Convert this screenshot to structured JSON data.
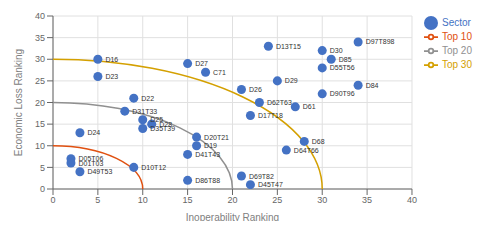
{
  "chart_data": {
    "type": "scatter",
    "xlabel": "Inoperability Ranking",
    "ylabel": "Economic Loss Ranking",
    "xlim": [
      0,
      40
    ],
    "ylim": [
      0,
      40
    ],
    "xticks": [
      0,
      5,
      10,
      15,
      20,
      25,
      30,
      35,
      40
    ],
    "yticks": [
      0,
      5,
      10,
      15,
      20,
      25,
      30,
      35,
      40
    ],
    "grid": true,
    "legend": "right",
    "series": [
      {
        "name": "Top 10",
        "type": "arc",
        "color": "#e05010",
        "radius": 10
      },
      {
        "name": "Top 20",
        "type": "arc",
        "color": "#909090",
        "radius": 20
      },
      {
        "name": "Top 30",
        "type": "arc",
        "color": "#d4a000",
        "radius": 30
      },
      {
        "name": "Sector",
        "type": "scatter",
        "color": "#4472c4",
        "labels": [
          "D16",
          "D23",
          "D22",
          "D24",
          "D31T33",
          "D25",
          "D35T39",
          "D28",
          "D05T06",
          "D01T03",
          "D49T53",
          "D10T12",
          "D27",
          "C71",
          "D20T21",
          "D19",
          "D41T43",
          "D86T88",
          "D26",
          "D62T63",
          "D17T18",
          "D69T82",
          "D45T47",
          "D13T15",
          "D29",
          "D61",
          "D64T66",
          "D68",
          "D30",
          "D85",
          "D55T56",
          "D90T96",
          "D84",
          "D97T898"
        ],
        "x": [
          5,
          5,
          9,
          3,
          8,
          10,
          10,
          11,
          2,
          2,
          3,
          9,
          15,
          17,
          16,
          16,
          15,
          15,
          21,
          23,
          22,
          21,
          22,
          24,
          25,
          27,
          26,
          28,
          30,
          31,
          30,
          30,
          34,
          34
        ],
        "y": [
          30,
          26,
          21,
          13,
          18,
          16,
          14,
          15,
          7,
          6,
          4,
          5,
          29,
          27,
          12,
          10,
          8,
          2,
          23,
          20,
          17,
          3,
          1,
          33,
          25,
          19,
          9,
          11,
          32,
          30,
          28,
          22,
          24,
          34
        ]
      }
    ]
  }
}
